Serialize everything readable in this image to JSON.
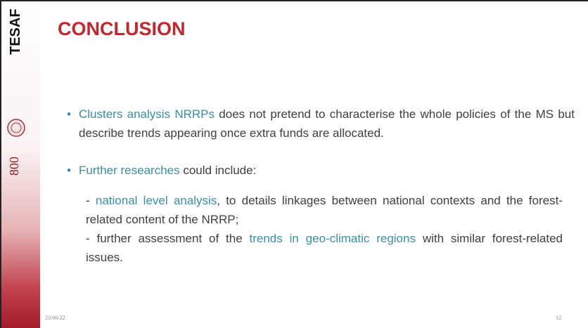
{
  "sidebar": {
    "logo": "TESAF",
    "anniversary": "800"
  },
  "title": "CONCLUSION",
  "bullets": [
    {
      "parts": [
        {
          "text": "Clusters analysis NRRPs",
          "highlight": true
        },
        {
          "text": " does not pretend to characterise the whole policies of the MS but describe trends appearing once extra funds are allocated.",
          "highlight": false
        }
      ]
    },
    {
      "parts": [
        {
          "text": "Further researches",
          "highlight": true
        },
        {
          "text": " could include:",
          "highlight": false
        }
      ]
    }
  ],
  "subitems": [
    {
      "parts": [
        {
          "text": "- ",
          "highlight": false
        },
        {
          "text": "national level analysis",
          "highlight": true
        },
        {
          "text": ", to details linkages between national contexts and the forest-related content of the NRRP;",
          "highlight": false
        }
      ]
    },
    {
      "parts": [
        {
          "text": "- further assessment of the ",
          "highlight": false
        },
        {
          "text": "trends in geo-climatic regions",
          "highlight": true
        },
        {
          "text": " with similar forest-related issues.",
          "highlight": false
        }
      ]
    }
  ],
  "footer": {
    "date": "23/06/22",
    "page": "12"
  }
}
